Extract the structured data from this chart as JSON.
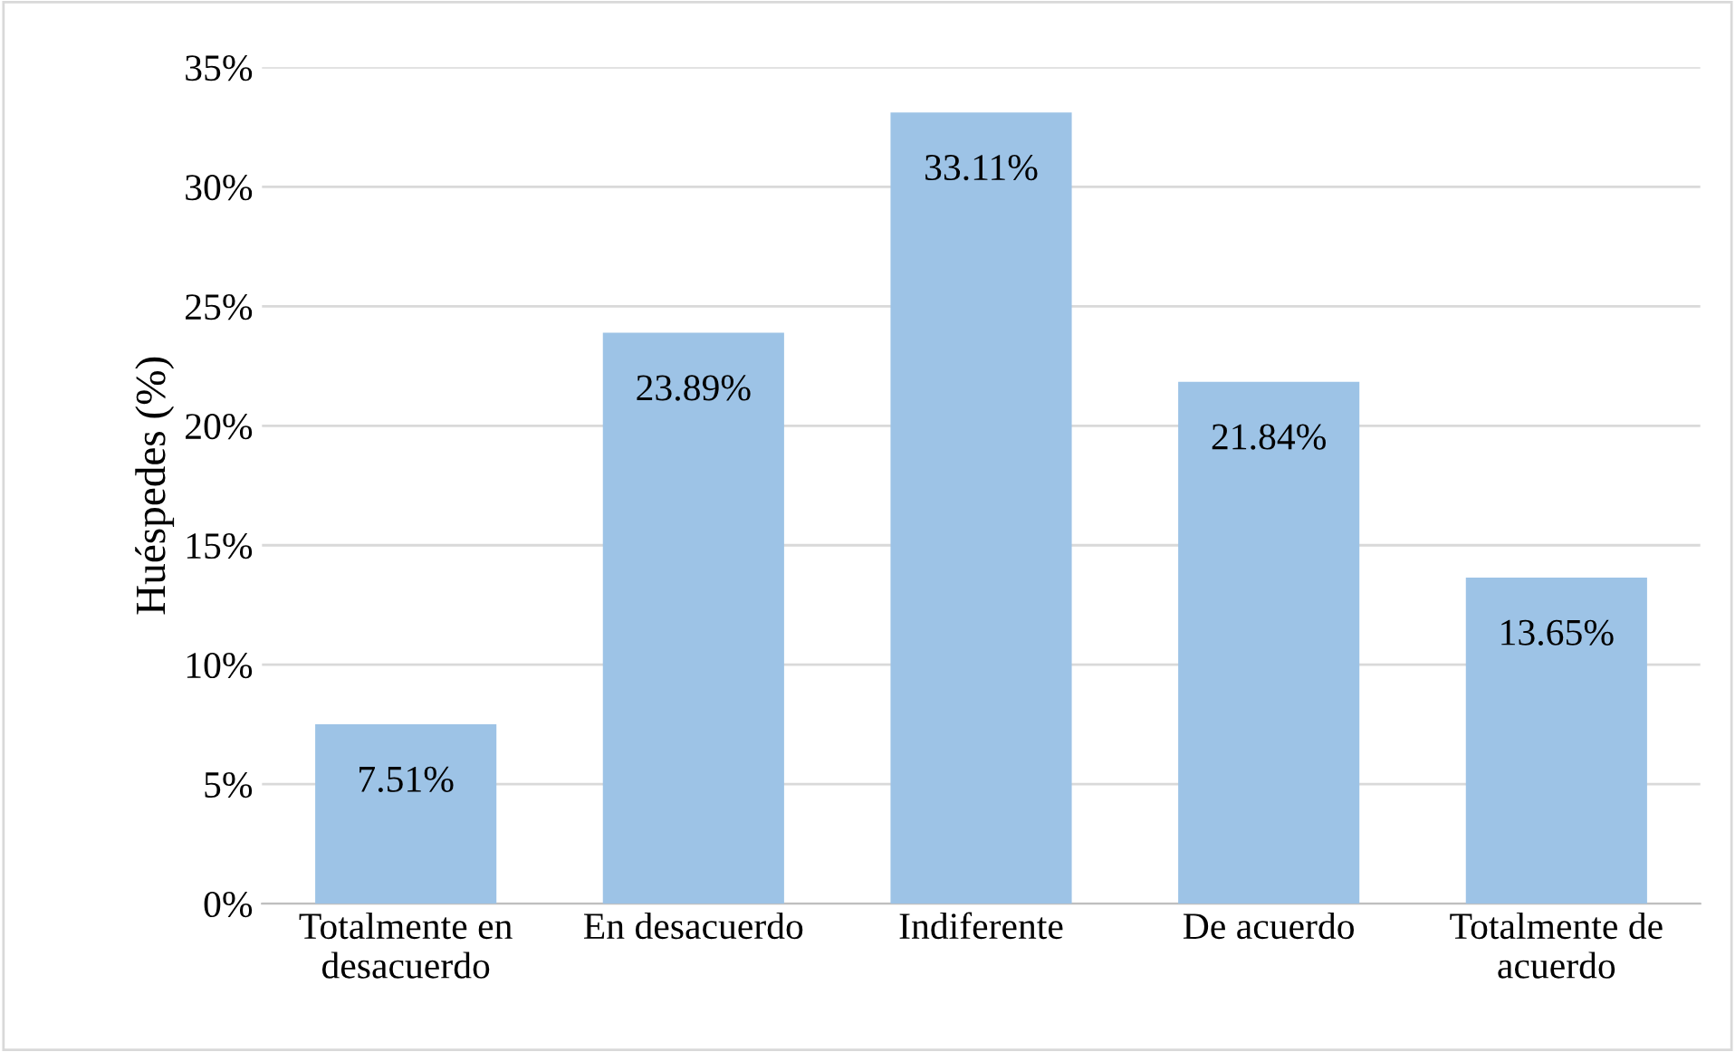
{
  "chart_data": {
    "type": "bar",
    "ylabel": "Huéspedes (%)",
    "categories": [
      "Totalmente en\ndesacuerdo",
      "En desacuerdo",
      "Indiferente",
      "De acuerdo",
      "Totalmente de\nacuerdo"
    ],
    "values": [
      7.51,
      23.89,
      33.11,
      21.84,
      13.65
    ],
    "value_labels": [
      "7.51%",
      "23.89%",
      "33.11%",
      "21.84%",
      "13.65%"
    ],
    "color": "#9dc3e6",
    "ylim": [
      0,
      35
    ],
    "yticks": [
      {
        "value": 0,
        "label": "0%"
      },
      {
        "value": 5,
        "label": "5%"
      },
      {
        "value": 10,
        "label": "10%"
      },
      {
        "value": 15,
        "label": "15%"
      },
      {
        "value": 20,
        "label": "20%"
      },
      {
        "value": 25,
        "label": "25%"
      },
      {
        "value": 30,
        "label": "30%"
      },
      {
        "value": 35,
        "label": "35%"
      }
    ],
    "grid": "y",
    "legend": false
  }
}
